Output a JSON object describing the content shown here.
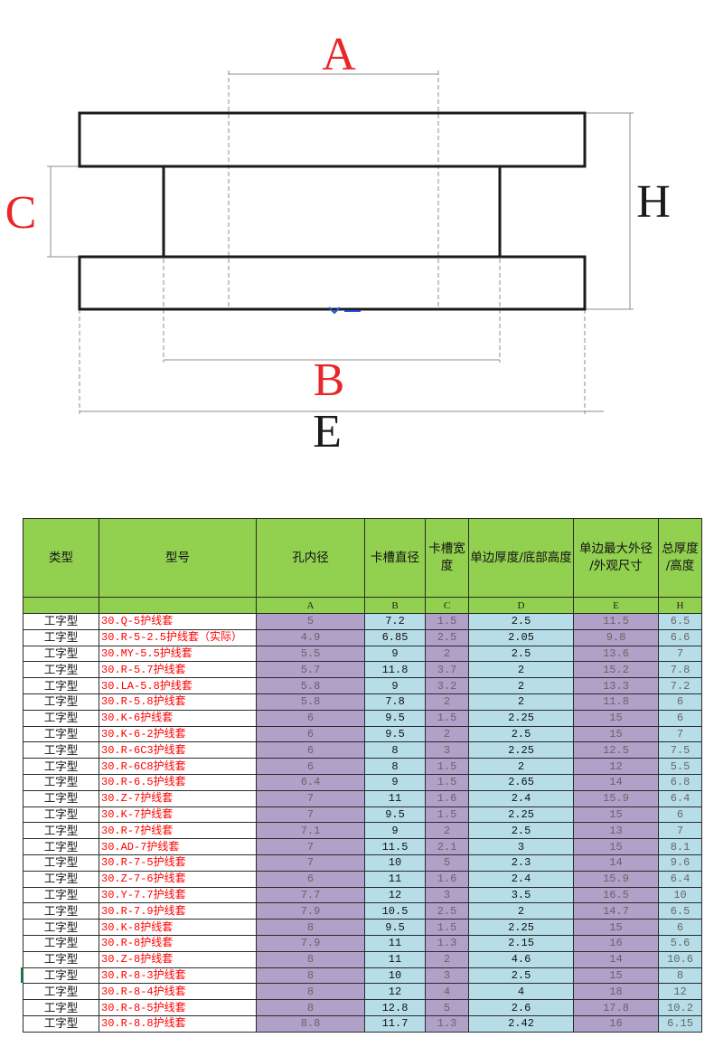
{
  "diagram": {
    "labels": {
      "a": {
        "text": "A",
        "color": "#e8272a"
      },
      "b": {
        "text": "B",
        "color": "#e8272a"
      },
      "c": {
        "text": "C",
        "color": "#e8272a"
      },
      "e": {
        "text": "E",
        "color": "#1a1a1a"
      },
      "h": {
        "text": "H",
        "color": "#1a1a1a"
      }
    },
    "outline_color": "#1a1a1a",
    "marker_color": "#1e4fd8"
  },
  "colors": {
    "header_green": "#92d050",
    "purple_column": "#b1a0c7",
    "blue_column": "#b7dee8",
    "model_text_red": "#ff0000",
    "active_cell_marker": "#217346"
  },
  "table": {
    "headers": [
      {
        "lines": [
          "类型"
        ]
      },
      {
        "lines": [
          "型号"
        ]
      },
      {
        "lines": [
          "孔内径"
        ]
      },
      {
        "lines": [
          "卡槽直径"
        ]
      },
      {
        "lines": [
          "卡槽宽",
          "度"
        ]
      },
      {
        "lines": [
          "单边厚度/底部高度"
        ]
      },
      {
        "lines": [
          "单边最大外径",
          "/外观尺寸"
        ]
      },
      {
        "lines": [
          "总厚度",
          "/高度"
        ]
      }
    ],
    "codes": [
      "",
      "",
      "A",
      "B",
      "C",
      "D",
      "E",
      "H"
    ],
    "rows": [
      [
        "工字型",
        "30.Q-5护线套",
        "5",
        "7.2",
        "1.5",
        "2.5",
        "11.5",
        "6.5"
      ],
      [
        "工字型",
        "30.R-5-2.5护线套（实际）",
        "4.9",
        "6.85",
        "2.5",
        "2.05",
        "9.8",
        "6.6"
      ],
      [
        "工字型",
        "30.MY-5.5护线套",
        "5.5",
        "9",
        "2",
        "2.5",
        "13.6",
        "7"
      ],
      [
        "工字型",
        "30.R-5.7护线套",
        "5.7",
        "11.8",
        "3.7",
        "2",
        "15.2",
        "7.8"
      ],
      [
        "工字型",
        "30.LA-5.8护线套",
        "5.8",
        "9",
        "3.2",
        "2",
        "13.3",
        "7.2"
      ],
      [
        "工字型",
        "30.R-5.8护线套",
        "5.8",
        "7.8",
        "2",
        "2",
        "11.8",
        "6"
      ],
      [
        "工字型",
        "30.K-6护线套",
        "6",
        "9.5",
        "1.5",
        "2.25",
        "15",
        "6"
      ],
      [
        "工字型",
        "30.K-6-2护线套",
        "6",
        "9.5",
        "2",
        "2.5",
        "15",
        "7"
      ],
      [
        "工字型",
        "30.R-6C3护线套",
        "6",
        "8",
        "3",
        "2.25",
        "12.5",
        "7.5"
      ],
      [
        "工字型",
        "30.R-6C8护线套",
        "6",
        "8",
        "1.5",
        "2",
        "12",
        "5.5"
      ],
      [
        "工字型",
        "30.R-6.5护线套",
        "6.4",
        "9",
        "1.5",
        "2.65",
        "14",
        "6.8"
      ],
      [
        "工字型",
        "30.Z-7护线套",
        "7",
        "11",
        "1.6",
        "2.4",
        "15.9",
        "6.4"
      ],
      [
        "工字型",
        "30.K-7护线套",
        "7",
        "9.5",
        "1.5",
        "2.25",
        "15",
        "6"
      ],
      [
        "工字型",
        "30.R-7护线套",
        "7.1",
        "9",
        "2",
        "2.5",
        "13",
        "7"
      ],
      [
        "工字型",
        "30.AD-7护线套",
        "7",
        "11.5",
        "2.1",
        "3",
        "15",
        "8.1"
      ],
      [
        "工字型",
        "30.R-7-5护线套",
        "7",
        "10",
        "5",
        "2.3",
        "14",
        "9.6"
      ],
      [
        "工字型",
        "30.Z-7-6护线套",
        "6",
        "11",
        "1.6",
        "2.4",
        "15.9",
        "6.4"
      ],
      [
        "工字型",
        "30.Y-7.7护线套",
        "7.7",
        "12",
        "3",
        "3.5",
        "16.5",
        "10"
      ],
      [
        "工字型",
        "30.R-7.9护线套",
        "7.9",
        "10.5",
        "2.5",
        "2",
        "14.7",
        "6.5"
      ],
      [
        "工字型",
        "30.K-8护线套",
        "8",
        "9.5",
        "1.5",
        "2.25",
        "15",
        "6"
      ],
      [
        "工字型",
        "30.R-8护线套",
        "7.9",
        "11",
        "1.3",
        "2.15",
        "16",
        "5.6"
      ],
      [
        "工字型",
        "30.Z-8护线套",
        "8",
        "11",
        "2",
        "4.6",
        "14",
        "10.6"
      ],
      [
        "工字型",
        "30.R-8-3护线套",
        "8",
        "10",
        "3",
        "2.5",
        "15",
        "8"
      ],
      [
        "工字型",
        "30.R-8-4护线套",
        "8",
        "12",
        "4",
        "4",
        "18",
        "12"
      ],
      [
        "工字型",
        "30.R-8-5护线套",
        "8",
        "12.8",
        "5",
        "2.6",
        "17.8",
        "10.2"
      ],
      [
        "工字型",
        "30.R-8.8护线套",
        "8.8",
        "11.7",
        "1.3",
        "2.42",
        "16",
        "6.15"
      ]
    ]
  }
}
